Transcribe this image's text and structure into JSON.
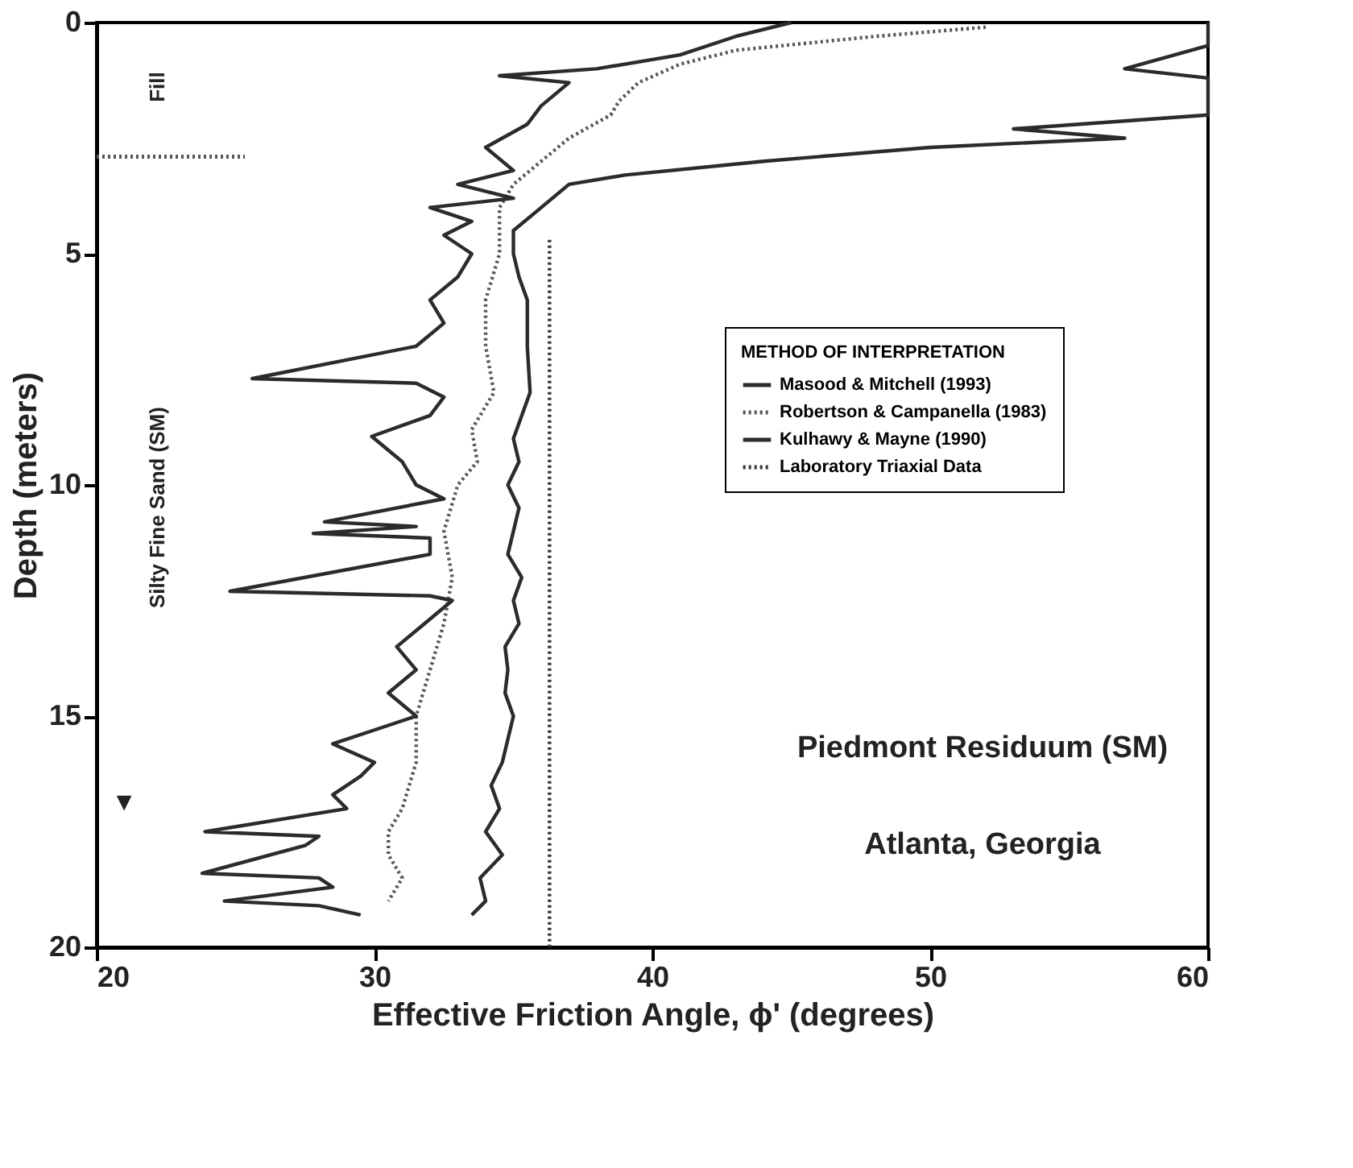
{
  "chart_data": {
    "type": "line",
    "xlabel": "Effective Friction Angle, ϕ' (degrees)",
    "ylabel": "Depth (meters)",
    "legend_title": "METHOD OF INTERPRETATION",
    "legend": "right",
    "grid": false,
    "xlim": [
      20,
      60
    ],
    "xticks": [
      20,
      30,
      40,
      50,
      60
    ],
    "ylim": [
      20,
      0
    ],
    "yticks": [
      0,
      5,
      10,
      15,
      20
    ],
    "series": [
      {
        "name": "Masood & Mitchell (1993)",
        "color": "#2b2b2b",
        "line_style": "solid",
        "x": [
          60,
          60,
          57,
          60,
          60,
          60,
          53,
          57,
          50,
          44,
          39,
          37,
          36,
          35,
          35,
          35.2,
          35.5,
          35.5,
          35.6,
          35.3,
          35,
          35.2,
          34.8,
          35.2,
          35,
          34.8,
          35.3,
          35,
          35.2,
          34.7,
          34.8,
          34.7,
          35,
          34.8,
          34.6,
          34.2,
          34.5,
          34,
          34.6,
          33.8,
          34,
          33.5
        ],
        "values": [
          0,
          0.5,
          1.0,
          1.2,
          1.5,
          2.0,
          2.3,
          2.5,
          2.7,
          3.0,
          3.3,
          3.5,
          4.0,
          4.5,
          5,
          5.5,
          6,
          7,
          8,
          8.5,
          9,
          9.5,
          10,
          10.5,
          11,
          11.5,
          12,
          12.5,
          13,
          13.5,
          14,
          14.5,
          15,
          15.5,
          16,
          16.5,
          17,
          17.5,
          18,
          18.5,
          19,
          19.3
        ]
      },
      {
        "name": "Robertson & Campanella (1983)",
        "color": "#555555",
        "line_style": "dotted",
        "x": [
          52,
          48,
          43,
          41,
          39.5,
          38.8,
          38.5,
          37,
          36,
          35,
          34.5,
          34.5,
          34,
          34,
          34.3,
          33.5,
          33.7,
          33,
          32.5,
          32.8,
          32.5,
          32,
          31.5,
          31.5,
          31,
          30.5,
          30.5,
          31,
          30.5
        ],
        "values": [
          0.1,
          0.3,
          0.6,
          0.9,
          1.3,
          1.7,
          2.0,
          2.5,
          3.0,
          3.5,
          4,
          5,
          6,
          7,
          8,
          8.8,
          9.5,
          10,
          11,
          12,
          13,
          14,
          15,
          16,
          17,
          17.5,
          18,
          18.5,
          19
        ]
      },
      {
        "name": "Kulhawy & Mayne (1990)",
        "color": "#2b2b2b",
        "line_style": "solid",
        "x": [
          45,
          43,
          41,
          38,
          34.5,
          37,
          36,
          35.5,
          34,
          35,
          33,
          35,
          32,
          33.5,
          32.5,
          33.5,
          33,
          32,
          32.5,
          31.5,
          25.6,
          31.5,
          32.5,
          32,
          29.9,
          31,
          31.5,
          32.5,
          28.2,
          31.5,
          27.8,
          32,
          32,
          24.8,
          32,
          32.8,
          31.8,
          30.8,
          31.5,
          30.5,
          31.5,
          30,
          28.5,
          30,
          29.5,
          28.5,
          29,
          23.9,
          28,
          27.5,
          23.8,
          28,
          28.5,
          24.6,
          28,
          29.5
        ],
        "values": [
          0,
          0.3,
          0.7,
          1.0,
          1.15,
          1.3,
          1.8,
          2.2,
          2.7,
          3.2,
          3.5,
          3.8,
          4.0,
          4.3,
          4.6,
          5,
          5.5,
          6,
          6.5,
          7,
          7.7,
          7.8,
          8.1,
          8.5,
          8.95,
          9.5,
          10,
          10.3,
          10.8,
          10.9,
          11.05,
          11.15,
          11.5,
          12.3,
          12.4,
          12.5,
          13,
          13.5,
          14,
          14.5,
          15,
          15.3,
          15.6,
          16,
          16.3,
          16.7,
          17,
          17.5,
          17.6,
          17.8,
          18.4,
          18.5,
          18.7,
          19.0,
          19.1,
          19.3
        ]
      },
      {
        "name": "Laboratory Triaxial Data",
        "color": "#333333",
        "line_style": "dotted",
        "x": [
          36.3,
          36.3
        ],
        "values": [
          4.7,
          20
        ]
      }
    ],
    "ref_lines": [
      {
        "axis": "y",
        "value": 2.9,
        "line_style": "dotted",
        "color": "#555555"
      }
    ],
    "annotations": [
      "Fill",
      "Silty Fine Sand (SM)",
      "▼",
      "Piedmont Residuum (SM)",
      "Atlanta, Georgia"
    ]
  }
}
